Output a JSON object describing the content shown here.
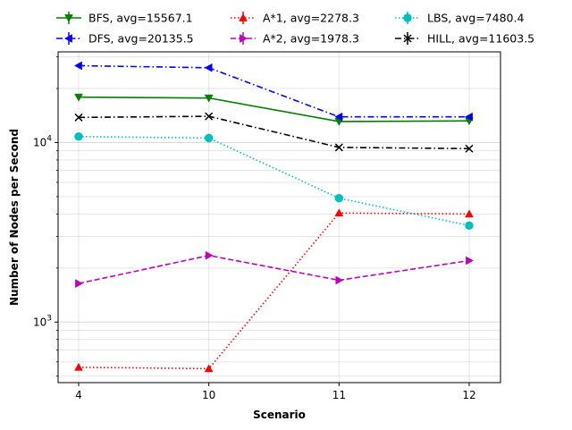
{
  "chart_data": {
    "type": "line",
    "title": "",
    "xlabel": "Scenario",
    "ylabel": "Number of Nodes per Second",
    "categories": [
      "4",
      "10",
      "11",
      "12"
    ],
    "yscale": "log",
    "ylim": [
      460,
      32000
    ],
    "y_ticks": [
      {
        "value": 1000,
        "base": "10",
        "exp": "3"
      },
      {
        "value": 10000,
        "base": "10",
        "exp": "4"
      }
    ],
    "grid": true,
    "legend_position": "top, above plot (3 columns)",
    "series": [
      {
        "name": "BFS, avg=15567.1",
        "values": [
          17900,
          17700,
          13100,
          13200
        ],
        "color": "#008000",
        "linestyle": "solid",
        "marker": "triangle-down"
      },
      {
        "name": "DFS, avg=20135.5",
        "values": [
          26800,
          26100,
          13900,
          13900
        ],
        "color": "#0000ff",
        "linestyle": "dashdot",
        "marker": "triangle-left"
      },
      {
        "name": "A*1, avg=2278.3",
        "values": [
          560,
          550,
          4050,
          4000
        ],
        "color": "#ff0000",
        "linestyle": "dotted",
        "marker": "triangle-up"
      },
      {
        "name": "A*2, avg=1978.3",
        "values": [
          1640,
          2350,
          1710,
          2200
        ],
        "color": "#bf00bf",
        "linestyle": "dashed",
        "marker": "triangle-right"
      },
      {
        "name": "LBS, avg=7480.4",
        "values": [
          10800,
          10600,
          4900,
          3450
        ],
        "color": "#00bfbf",
        "linestyle": "dotted",
        "marker": "circle"
      },
      {
        "name": "HILL, avg=11603.5",
        "values": [
          13800,
          14000,
          9400,
          9250
        ],
        "color": "#000000",
        "linestyle": "dashdot",
        "marker": "x"
      }
    ]
  }
}
